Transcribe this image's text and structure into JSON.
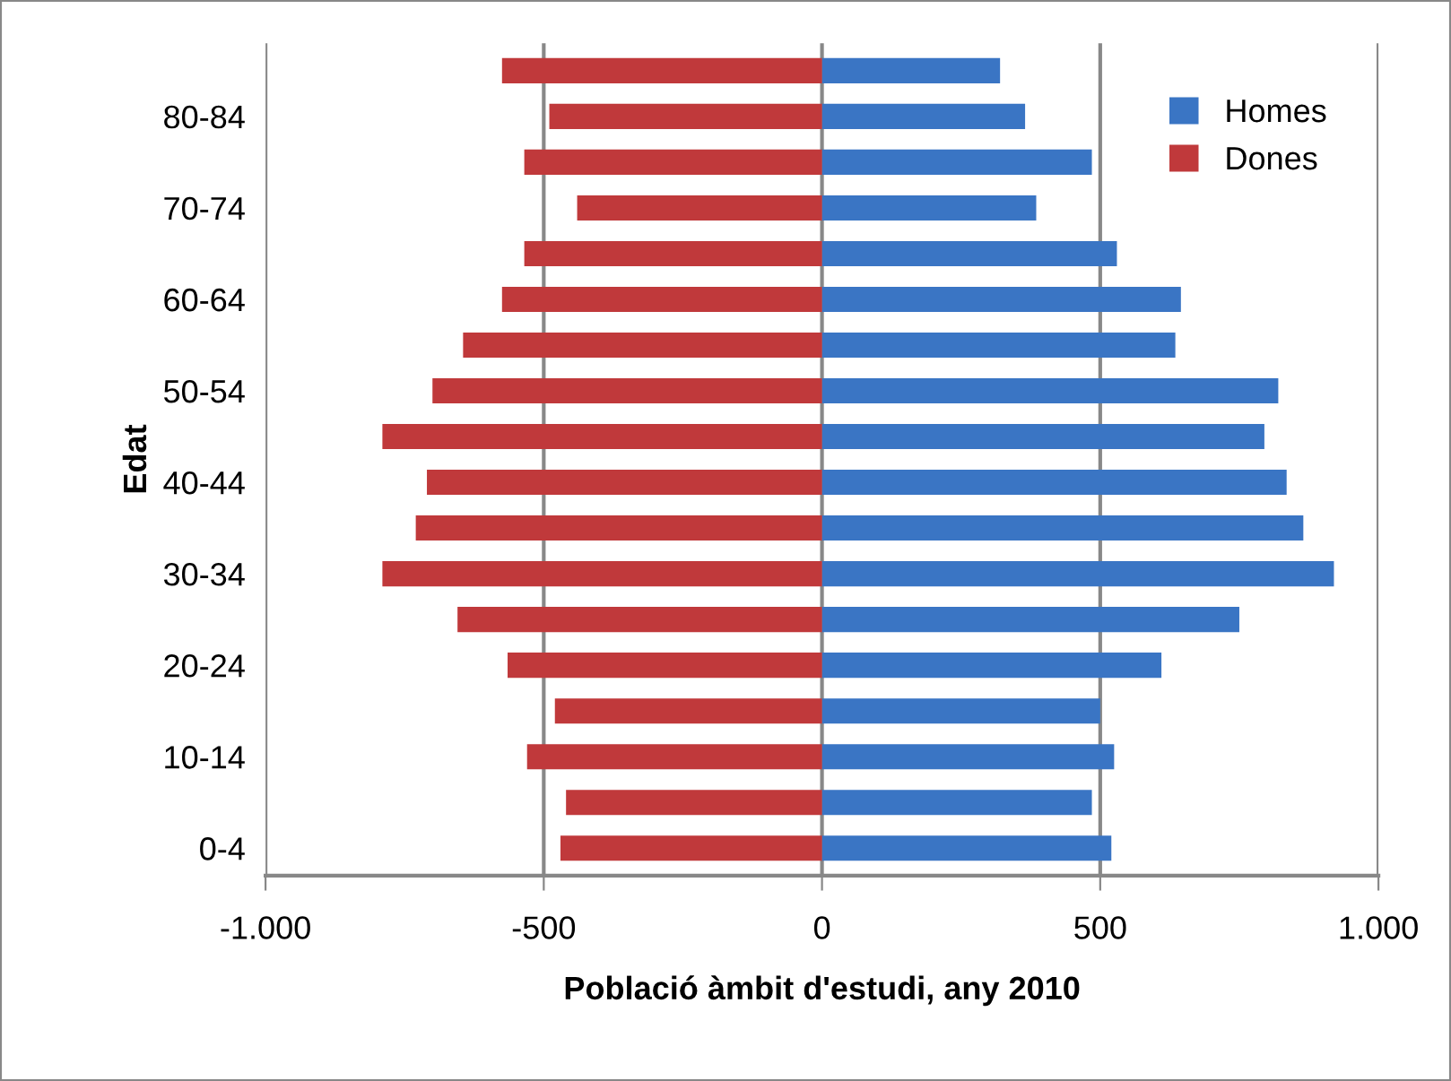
{
  "chart_data": {
    "type": "bar",
    "orientation": "horizontal",
    "stacked": true,
    "xlabel": "Població àmbit d'estudi, any 2010",
    "ylabel": "Edat",
    "categories": [
      null,
      "80-84",
      null,
      "70-74",
      null,
      "60-64",
      null,
      "50-54",
      null,
      "40-44",
      null,
      "30-34",
      null,
      "20-24",
      null,
      "10-14",
      null,
      "0-4"
    ],
    "series": [
      {
        "name": "Homes",
        "color": "#3a75c4",
        "values": [
          320,
          365,
          485,
          385,
          530,
          645,
          635,
          820,
          795,
          835,
          865,
          920,
          750,
          610,
          500,
          525,
          485,
          520
        ]
      },
      {
        "name": "Dones",
        "color": "#c0393b",
        "values": [
          -575,
          -490,
          -535,
          -440,
          -535,
          -575,
          -645,
          -700,
          -790,
          -710,
          -730,
          -790,
          -655,
          -565,
          -480,
          -530,
          -460,
          -470
        ]
      }
    ],
    "xlim": [
      -1000,
      1000
    ],
    "xticks": [
      {
        "value": -1000,
        "label": "-1.000"
      },
      -500,
      0,
      500,
      {
        "value": 1000,
        "label": "1.000"
      }
    ],
    "grid": "x",
    "legend": "top right"
  }
}
